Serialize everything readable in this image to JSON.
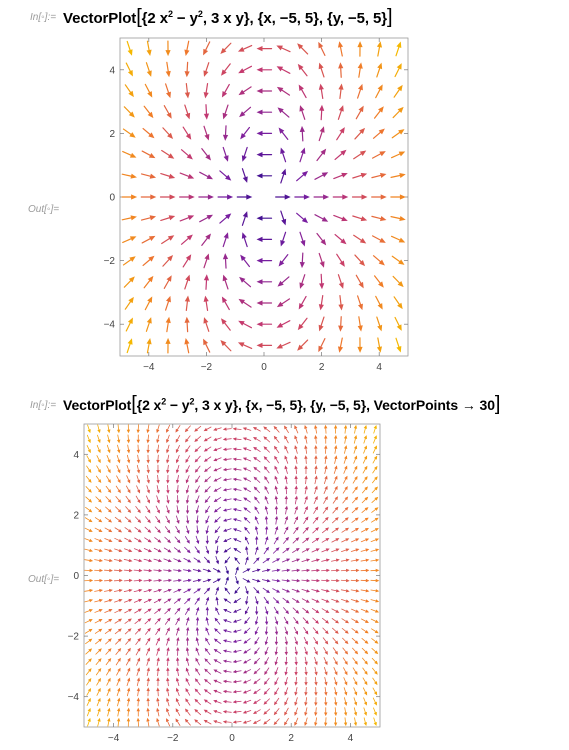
{
  "cells": [
    {
      "in_label": "In[◦]:=",
      "out_label": "Out[◦]=",
      "code": {
        "fn": "VectorPlot",
        "field_a_pre": "{2 x",
        "field_a_exp": "2",
        "field_a_mid": " − y",
        "field_a_exp2": "2",
        "field_b": ", 3 x y}",
        "range_x": ", {x, −5, 5}",
        "range_y": ", {y, −5, 5}",
        "option": ""
      }
    },
    {
      "in_label": "In[◦]:=",
      "out_label": "Out[◦]=",
      "code": {
        "fn": "VectorPlot",
        "field_a_pre": "{2 x",
        "field_a_exp": "2",
        "field_a_mid": " − y",
        "field_a_exp2": "2",
        "field_b": ", 3 x y}",
        "range_x": ", {x, −5, 5}",
        "range_y": ", {y, −5, 5}",
        "option": ", VectorPoints → 30"
      }
    }
  ],
  "chart_data": [
    {
      "type": "vector-field",
      "field": [
        "2*x^2 - y^2",
        "3*x*y"
      ],
      "xlim": [
        -5,
        5
      ],
      "ylim": [
        -5,
        5
      ],
      "grid_points": 15,
      "x_ticks": [
        "−4",
        "−2",
        "0",
        "2",
        "4"
      ],
      "y_ticks": [
        "4",
        "2",
        "0",
        "−2",
        "−4"
      ],
      "colors": [
        "#2b0a8c",
        "#7a1fa0",
        "#c63a6e",
        "#f07a2a",
        "#f5b800"
      ]
    },
    {
      "type": "vector-field",
      "field": [
        "2*x^2 - y^2",
        "3*x*y"
      ],
      "xlim": [
        -5,
        5
      ],
      "ylim": [
        -5,
        5
      ],
      "grid_points": 30,
      "x_ticks": [
        "−4",
        "−2",
        "0",
        "2",
        "4"
      ],
      "y_ticks": [
        "4",
        "2",
        "0",
        "−2",
        "−4"
      ],
      "colors": [
        "#2b0a8c",
        "#7a1fa0",
        "#c63a6e",
        "#f07a2a",
        "#f5b800"
      ]
    }
  ]
}
